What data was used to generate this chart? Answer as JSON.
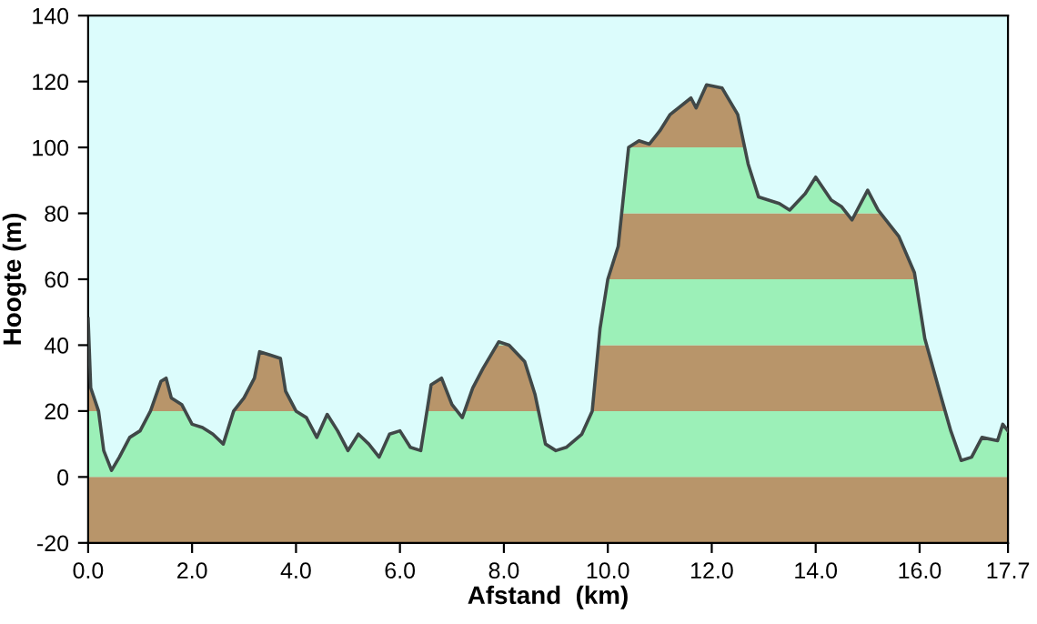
{
  "chart_data": {
    "type": "line",
    "xlabel": "Afstand  (km)",
    "ylabel": "Hoogte (m)",
    "x": [
      0.0,
      0.05,
      0.2,
      0.3,
      0.45,
      0.6,
      0.8,
      1.0,
      1.2,
      1.4,
      1.5,
      1.6,
      1.8,
      2.0,
      2.2,
      2.4,
      2.6,
      2.8,
      3.0,
      3.2,
      3.3,
      3.5,
      3.7,
      3.8,
      4.0,
      4.2,
      4.4,
      4.6,
      4.8,
      5.0,
      5.2,
      5.4,
      5.6,
      5.8,
      6.0,
      6.2,
      6.4,
      6.6,
      6.8,
      7.0,
      7.2,
      7.4,
      7.6,
      7.9,
      8.1,
      8.4,
      8.6,
      8.8,
      9.0,
      9.2,
      9.5,
      9.7,
      9.85,
      10.0,
      10.2,
      10.4,
      10.6,
      10.8,
      11.0,
      11.2,
      11.6,
      11.7,
      11.9,
      12.2,
      12.5,
      12.7,
      12.9,
      13.3,
      13.5,
      13.8,
      14.0,
      14.3,
      14.5,
      14.7,
      15.0,
      15.2,
      15.6,
      15.9,
      16.1,
      16.4,
      16.6,
      16.8,
      17.0,
      17.2,
      17.5,
      17.6,
      17.7
    ],
    "series": [
      {
        "color": "#404848",
        "values": [
          48,
          27,
          20,
          8,
          2,
          6,
          12,
          14,
          20,
          29,
          30,
          24,
          22,
          16,
          15,
          13,
          10,
          20,
          24,
          30,
          38,
          37,
          36,
          26,
          20,
          18,
          12,
          19,
          14,
          8,
          13,
          10,
          6,
          13,
          14,
          9,
          8,
          28,
          30,
          22,
          18,
          27,
          33,
          41,
          40,
          35,
          25,
          10,
          8,
          9,
          13,
          20,
          45,
          60,
          70,
          100,
          102,
          101,
          105,
          110,
          115,
          112,
          119,
          118,
          110,
          95,
          85,
          83,
          81,
          86,
          91,
          84,
          82,
          78,
          87,
          81,
          73,
          62,
          42,
          25,
          14,
          5,
          6,
          12,
          11,
          16,
          14
        ]
      }
    ],
    "bands": [
      {
        "axis": "y",
        "from": -20,
        "to": 0,
        "color": "#b8956a"
      },
      {
        "axis": "y",
        "from": 0,
        "to": 20,
        "color": "#9cf0b8"
      },
      {
        "axis": "y",
        "from": 20,
        "to": 40,
        "color": "#b8956a"
      },
      {
        "axis": "y",
        "from": 40,
        "to": 60,
        "color": "#9cf0b8"
      },
      {
        "axis": "y",
        "from": 60,
        "to": 80,
        "color": "#b8956a"
      },
      {
        "axis": "y",
        "from": 80,
        "to": 100,
        "color": "#9cf0b8"
      },
      {
        "axis": "y",
        "from": 100,
        "to": 120,
        "color": "#b8956a"
      }
    ],
    "xlim": [
      0,
      17.7
    ],
    "ylim": [
      -20,
      140
    ],
    "xticks": [
      {
        "value": 0,
        "label": "0.0"
      },
      {
        "value": 2,
        "label": "2.0"
      },
      {
        "value": 4,
        "label": "4.0"
      },
      {
        "value": 6,
        "label": "6.0"
      },
      {
        "value": 8,
        "label": "8.0"
      },
      {
        "value": 10,
        "label": "10.0"
      },
      {
        "value": 12,
        "label": "12.0"
      },
      {
        "value": 14,
        "label": "14.0"
      },
      {
        "value": 16,
        "label": "16.0"
      },
      {
        "value": 17.7,
        "label": "17.7"
      }
    ],
    "yticks": [
      -20,
      0,
      20,
      40,
      60,
      80,
      100,
      120,
      140
    ]
  }
}
